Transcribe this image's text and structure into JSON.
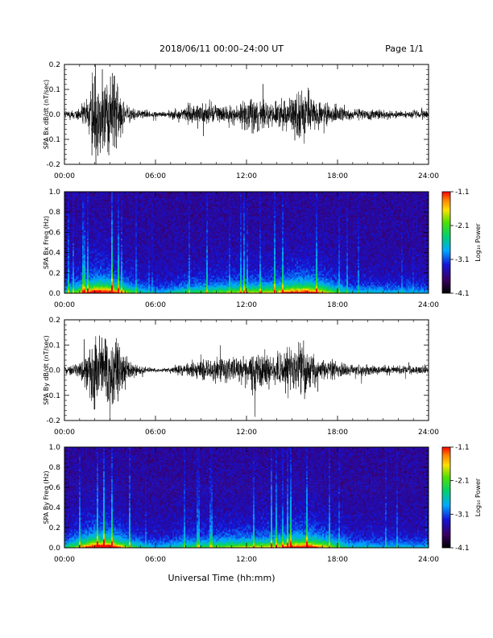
{
  "header": {
    "date_range": "2018/06/11   00:00–24:00 UT",
    "page": "Page 1/1"
  },
  "footer": {
    "xlabel": "Universal Time (hh:mm)"
  },
  "colors": {
    "trace": "#000000",
    "background": "#ffffff"
  },
  "chart_data": [
    {
      "type": "line",
      "ylabel": "SPA Bx dB/dt (nT/sec)",
      "ylim": [
        -0.2,
        0.2
      ],
      "yticks": [
        "0.2",
        "0.1",
        "0.0",
        "-0.1",
        "-0.2"
      ],
      "xticks": [
        "00:00",
        "06:00",
        "12:00",
        "18:00",
        "24:00"
      ],
      "xlim_hours": [
        0,
        24
      ],
      "envelope_hours": [
        0,
        0.5,
        1,
        1.5,
        2,
        2.5,
        3,
        3.5,
        4,
        4.5,
        5,
        5.5,
        6,
        6.5,
        7,
        7.5,
        8,
        8.5,
        9,
        9.5,
        10,
        10.5,
        11,
        11.5,
        12,
        12.5,
        13,
        13.5,
        14,
        14.5,
        15,
        15.5,
        16,
        16.5,
        17,
        17.5,
        18,
        18.5,
        19,
        19.5,
        20,
        20.5,
        21,
        21.5,
        22,
        22.5,
        23,
        23.5,
        24
      ],
      "envelope_amplitude": [
        0.02,
        0.025,
        0.04,
        0.1,
        0.22,
        0.22,
        0.22,
        0.2,
        0.06,
        0.035,
        0.025,
        0.02,
        0.015,
        0.012,
        0.02,
        0.03,
        0.04,
        0.05,
        0.05,
        0.06,
        0.06,
        0.05,
        0.05,
        0.06,
        0.07,
        0.09,
        0.08,
        0.06,
        0.07,
        0.08,
        0.1,
        0.13,
        0.1,
        0.08,
        0.06,
        0.05,
        0.04,
        0.035,
        0.03,
        0.03,
        0.03,
        0.025,
        0.025,
        0.02,
        0.02,
        0.02,
        0.02,
        0.02,
        0.02
      ]
    },
    {
      "type": "heatmap",
      "ylabel": "SPA Bx Freq (Hz)",
      "ylim": [
        0.0,
        1.0
      ],
      "yticks": [
        "1.0",
        "0.8",
        "0.6",
        "0.4",
        "0.2",
        "0.0"
      ],
      "xticks": [
        "00:00",
        "06:00",
        "12:00",
        "18:00",
        "24:00"
      ],
      "colorbar_label": "Log₁₀ Power",
      "colorbar_ticks": [
        "-1.1",
        "-2.1",
        "-3.1",
        "-4.1"
      ],
      "colorbar_range": [
        -4.1,
        -1.1
      ],
      "activity_hours": [
        0,
        1,
        2,
        3,
        4,
        5,
        6,
        7,
        8,
        9,
        10,
        11,
        12,
        13,
        14,
        15,
        16,
        17,
        18,
        19,
        20,
        21,
        22,
        23,
        24
      ],
      "activity_level": [
        0.35,
        0.6,
        1.0,
        0.95,
        0.6,
        0.35,
        0.25,
        0.3,
        0.4,
        0.45,
        0.5,
        0.55,
        0.6,
        0.6,
        0.65,
        0.85,
        0.9,
        0.7,
        0.45,
        0.3,
        0.3,
        0.28,
        0.28,
        0.26,
        0.25
      ]
    },
    {
      "type": "line",
      "ylabel": "SPA By dB/dt (nT/sec)",
      "ylim": [
        -0.2,
        0.2
      ],
      "yticks": [
        "0.2",
        "0.1",
        "0.0",
        "-0.1",
        "-0.2"
      ],
      "xticks": [
        "00:00",
        "06:00",
        "12:00",
        "18:00",
        "24:00"
      ],
      "xlim_hours": [
        0,
        24
      ],
      "envelope_hours": [
        0,
        0.5,
        1,
        1.5,
        2,
        2.5,
        3,
        3.5,
        4,
        4.5,
        5,
        5.5,
        6,
        6.5,
        7,
        7.5,
        8,
        8.5,
        9,
        9.5,
        10,
        10.5,
        11,
        11.5,
        12,
        12.5,
        13,
        13.5,
        14,
        14.5,
        15,
        15.5,
        16,
        16.5,
        17,
        17.5,
        18,
        18.5,
        19,
        19.5,
        20,
        20.5,
        21,
        21.5,
        22,
        22.5,
        23,
        23.5,
        24
      ],
      "envelope_amplitude": [
        0.02,
        0.025,
        0.04,
        0.12,
        0.22,
        0.22,
        0.2,
        0.18,
        0.07,
        0.03,
        0.02,
        0.015,
        0.012,
        0.01,
        0.015,
        0.025,
        0.03,
        0.04,
        0.05,
        0.05,
        0.06,
        0.06,
        0.06,
        0.07,
        0.09,
        0.11,
        0.09,
        0.07,
        0.08,
        0.1,
        0.12,
        0.14,
        0.1,
        0.08,
        0.06,
        0.05,
        0.04,
        0.035,
        0.03,
        0.03,
        0.03,
        0.025,
        0.025,
        0.025,
        0.02,
        0.02,
        0.02,
        0.02,
        0.02
      ]
    },
    {
      "type": "heatmap",
      "ylabel": "SPA By Freq (Hz)",
      "ylim": [
        0.0,
        1.0
      ],
      "yticks": [
        "1.0",
        "0.8",
        "0.6",
        "0.4",
        "0.2",
        "0.0"
      ],
      "xticks": [
        "00:00",
        "06:00",
        "12:00",
        "18:00",
        "24:00"
      ],
      "colorbar_label": "Log₁₀ Power",
      "colorbar_ticks": [
        "-1.1",
        "-2.1",
        "-3.1",
        "-4.1"
      ],
      "colorbar_range": [
        -4.1,
        -1.1
      ],
      "activity_hours": [
        0,
        1,
        2,
        3,
        4,
        5,
        6,
        7,
        8,
        9,
        10,
        11,
        12,
        13,
        14,
        15,
        16,
        17,
        18,
        19,
        20,
        21,
        22,
        23,
        24
      ],
      "activity_level": [
        0.35,
        0.6,
        1.0,
        0.95,
        0.6,
        0.35,
        0.25,
        0.3,
        0.4,
        0.45,
        0.5,
        0.55,
        0.6,
        0.6,
        0.65,
        0.85,
        0.9,
        0.7,
        0.45,
        0.3,
        0.3,
        0.28,
        0.28,
        0.26,
        0.25
      ]
    }
  ]
}
